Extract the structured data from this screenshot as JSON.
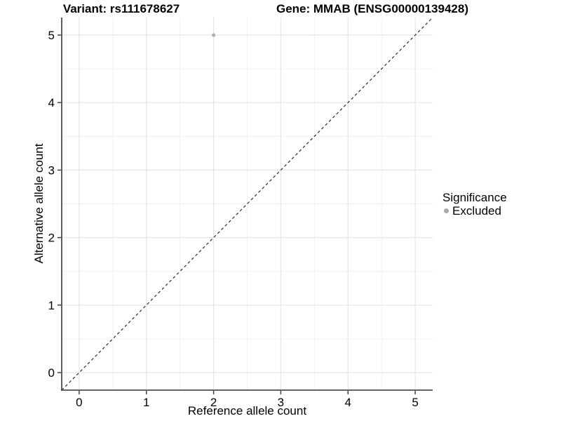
{
  "titles": {
    "variant": "Variant: rs111678627",
    "gene": "Gene: MMAB (ENSG00000139428)"
  },
  "chart_data": {
    "type": "scatter",
    "title_left": "Variant: rs111678627",
    "title_right": "Gene: MMAB (ENSG00000139428)",
    "xlabel": "Reference allele count",
    "ylabel": "Alternative allele count",
    "xlim": [
      -0.26,
      5.26
    ],
    "ylim": [
      -0.26,
      5.26
    ],
    "xticks": [
      0,
      1,
      2,
      3,
      4,
      5
    ],
    "yticks": [
      0,
      1,
      2,
      3,
      4,
      5
    ],
    "xticks_minor": [
      0.5,
      1.5,
      2.5,
      3.5,
      4.5
    ],
    "yticks_minor": [
      0.5,
      1.5,
      2.5,
      3.5,
      4.5
    ],
    "grid": {
      "major": true,
      "minor": true
    },
    "points": [
      {
        "x": 2,
        "y": 5,
        "significance": "Excluded"
      }
    ],
    "reference_line": {
      "type": "identity",
      "equation": "y = x",
      "style": "dashed"
    },
    "legend": {
      "title": "Significance",
      "position": "right",
      "items": [
        {
          "label": "Excluded",
          "marker": "dot",
          "color": "#a9a9a9"
        }
      ]
    },
    "style": {
      "background": "#ffffff",
      "point_color": "#b0b0b0",
      "point_radius": 2.6,
      "grid_major_color": "#e5e5e5",
      "grid_minor_color": "#f0f0f0",
      "axis_line_color": "#4d4d4d",
      "tick_color": "#333333",
      "ref_line_color": "#1a1a1a",
      "text_color": "#000000"
    }
  }
}
